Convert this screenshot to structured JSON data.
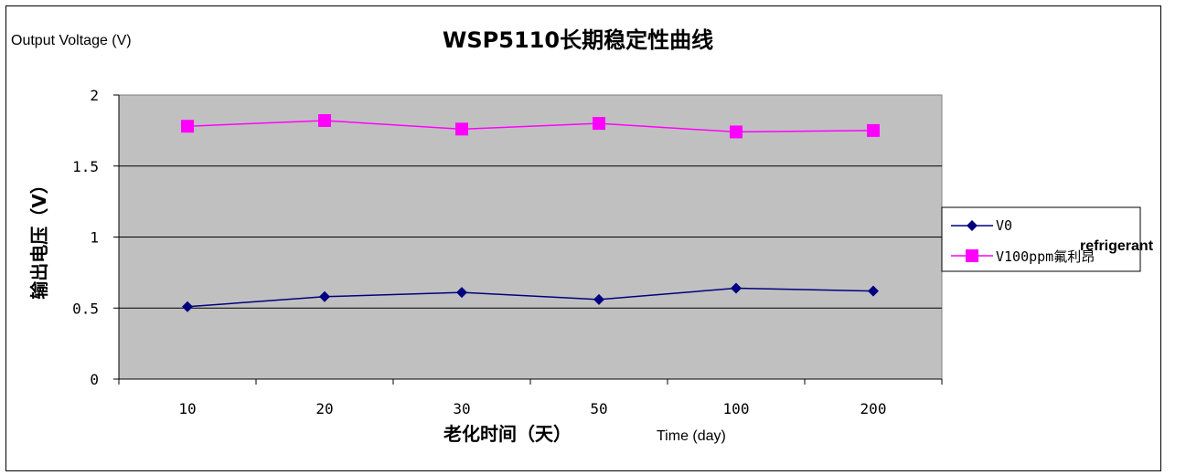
{
  "chart_data": {
    "type": "line",
    "title": "WSP5110长期稳定性曲线",
    "ylabel": "输出电压（V）",
    "ylabel_note": "Output Voltage (V)",
    "xlabel": "老化时间（天）",
    "xlabel_note": "Time (day)",
    "categories": [
      "10",
      "20",
      "30",
      "50",
      "100",
      "200"
    ],
    "ylim": [
      0,
      2
    ],
    "yticks": [
      "0",
      "0.5",
      "1",
      "1.5",
      "2"
    ],
    "grid": true,
    "legend_position": "right",
    "plot_background": "#c0c0c0",
    "series": [
      {
        "name": "V0",
        "color": "#000080",
        "marker": "diamond",
        "values": [
          0.51,
          0.58,
          0.61,
          0.56,
          0.64,
          0.62
        ]
      },
      {
        "name": "V100ppm氟利昂",
        "color": "#ff00ff",
        "marker": "square",
        "values": [
          1.78,
          1.82,
          1.76,
          1.8,
          1.74,
          1.75
        ]
      }
    ],
    "legend_note": "refrigerant"
  }
}
